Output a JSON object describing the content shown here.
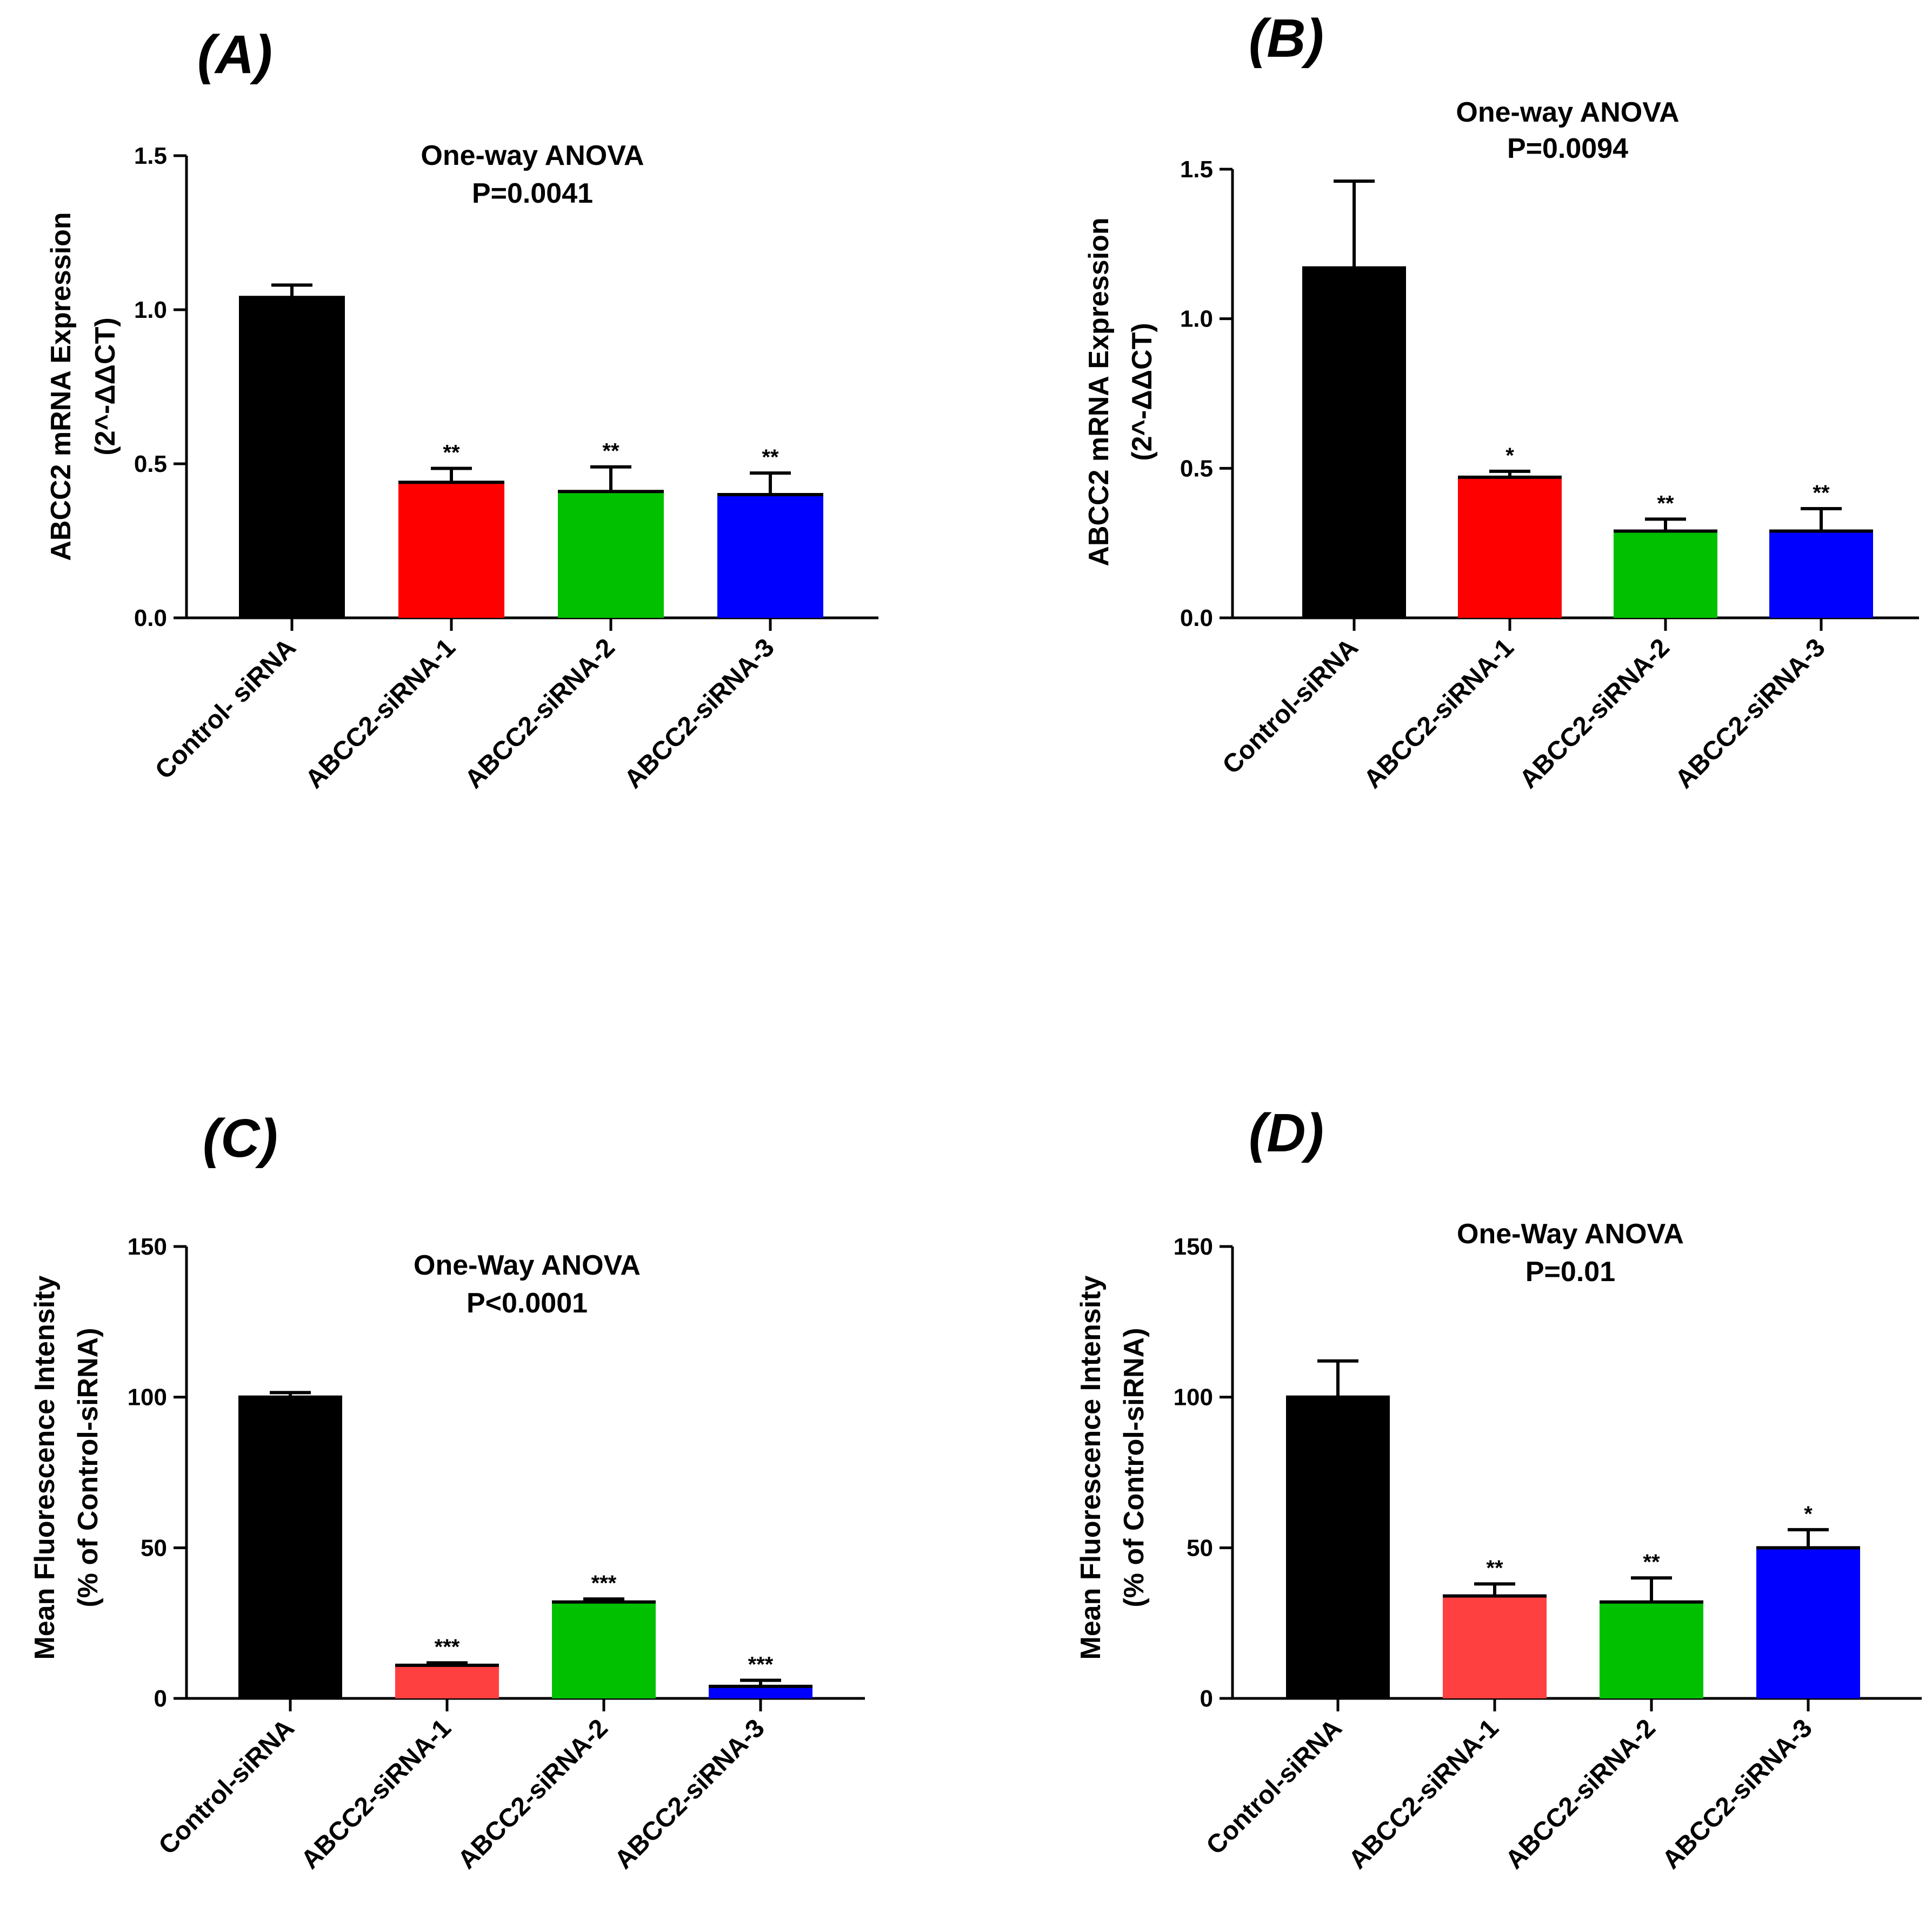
{
  "chart_data": [
    {
      "panel_label": "(A)",
      "type": "bar",
      "title_line1": "One-way ANOVA",
      "title_line2": "P=0.0041",
      "ylabel_line1": "ABCC2 mRNA Expression",
      "ylabel_line2": "(2^-ΔΔCT)",
      "categories": [
        "Control- siRNA",
        "ABCC2-siRNA-1",
        "ABCC2-siRNA-2",
        "ABCC2-siRNA-3"
      ],
      "values": [
        1.04,
        0.44,
        0.41,
        0.4
      ],
      "errors": [
        0.04,
        0.045,
        0.08,
        0.07
      ],
      "significance": [
        "",
        "**",
        "**",
        "**"
      ],
      "colors": [
        "#000000",
        "#ff0000",
        "#00c000",
        "#0000ff"
      ],
      "ylim": [
        0,
        1.5
      ],
      "yticks": [
        0.0,
        0.5,
        1.0,
        1.5
      ],
      "ytick_labels": [
        "0.0",
        "0.5",
        "1.0",
        "1.5"
      ]
    },
    {
      "panel_label": "(B)",
      "type": "bar",
      "title_line1": "One-way ANOVA",
      "title_line2": "P=0.0094",
      "ylabel_line1": "ABCC2 mRNA Expression",
      "ylabel_line2": "(2^-ΔΔCT)",
      "categories": [
        "Control-siRNA",
        "ABCC2-siRNA-1",
        "ABCC2-siRNA-2",
        "ABCC2-siRNA-3"
      ],
      "values": [
        1.17,
        0.47,
        0.29,
        0.29
      ],
      "errors": [
        0.29,
        0.02,
        0.04,
        0.075
      ],
      "significance": [
        "",
        "*",
        "**",
        "**"
      ],
      "colors": [
        "#000000",
        "#ff0000",
        "#00c000",
        "#0000ff"
      ],
      "ylim": [
        0,
        1.5
      ],
      "yticks": [
        0.0,
        0.5,
        1.0,
        1.5
      ],
      "ytick_labels": [
        "0.0",
        "0.5",
        "1.0",
        "1.5"
      ]
    },
    {
      "panel_label": "(C)",
      "type": "bar",
      "title_line1": "One-Way ANOVA",
      "title_line2": "P<0.0001",
      "ylabel_line1": "Mean Fluorescence Intensity",
      "ylabel_line2": "(% of Control-siRNA)",
      "categories": [
        "Control-siRNA",
        "ABCC2-siRNA-1",
        "ABCC2-siRNA-2",
        "ABCC2-siRNA-3"
      ],
      "values": [
        100,
        11,
        32,
        4
      ],
      "errors": [
        1.5,
        0.8,
        1,
        2
      ],
      "significance": [
        "",
        "***",
        "***",
        "***"
      ],
      "colors": [
        "#000000",
        "#ff4040",
        "#00c000",
        "#0000ff"
      ],
      "ylim": [
        0,
        150
      ],
      "yticks": [
        0,
        50,
        100,
        150
      ],
      "ytick_labels": [
        "0",
        "50",
        "100",
        "150"
      ]
    },
    {
      "panel_label": "(D)",
      "type": "bar",
      "title_line1": "One-Way ANOVA",
      "title_line2": "P=0.01",
      "ylabel_line1": "Mean Fluorescence Intensity",
      "ylabel_line2": "(% of Control-siRNA)",
      "categories": [
        "Control-siRNA",
        "ABCC2-siRNA-1",
        "ABCC2-siRNA-2",
        "ABCC2-siRNA-3"
      ],
      "values": [
        100,
        34,
        32,
        50
      ],
      "errors": [
        12,
        4,
        8,
        6
      ],
      "significance": [
        "",
        "**",
        "**",
        "*"
      ],
      "colors": [
        "#000000",
        "#ff4040",
        "#00c000",
        "#0000ff"
      ],
      "ylim": [
        0,
        150
      ],
      "yticks": [
        0,
        50,
        100,
        150
      ],
      "ytick_labels": [
        "0",
        "50",
        "100",
        "150"
      ]
    }
  ]
}
